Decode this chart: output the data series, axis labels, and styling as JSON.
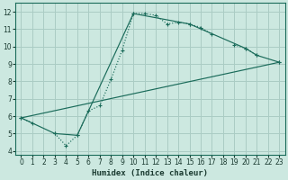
{
  "xlabel": "Humidex (Indice chaleur)",
  "bg_color": "#cce8e0",
  "grid_color": "#aaccc4",
  "line_color": "#1a6b5a",
  "xlim": [
    -0.5,
    23.5
  ],
  "ylim": [
    3.8,
    12.5
  ],
  "xticks": [
    0,
    1,
    2,
    3,
    4,
    5,
    6,
    7,
    8,
    9,
    10,
    11,
    12,
    13,
    14,
    15,
    16,
    17,
    18,
    19,
    20,
    21,
    22,
    23
  ],
  "yticks": [
    4,
    5,
    6,
    7,
    8,
    9,
    10,
    11,
    12
  ],
  "line1_segments": [
    {
      "x": [
        0,
        1
      ],
      "y": [
        5.9,
        5.6
      ]
    },
    {
      "x": [
        3,
        4,
        5,
        6,
        7,
        8,
        9,
        10,
        11,
        12,
        13,
        14,
        15,
        16,
        17
      ],
      "y": [
        5.0,
        4.3,
        4.9,
        6.3,
        6.6,
        8.1,
        9.8,
        11.9,
        11.9,
        11.8,
        11.3,
        11.4,
        11.3,
        11.1,
        10.7
      ]
    },
    {
      "x": [
        19,
        20,
        21
      ],
      "y": [
        10.1,
        9.9,
        9.5
      ]
    },
    {
      "x": [
        23
      ],
      "y": [
        9.1
      ]
    }
  ],
  "line2_x": [
    0,
    3,
    5,
    10,
    15,
    20,
    21,
    23
  ],
  "line2_y": [
    5.9,
    5.0,
    4.9,
    11.9,
    11.3,
    9.9,
    9.5,
    9.1
  ],
  "line3_x": [
    0,
    23
  ],
  "line3_y": [
    5.9,
    9.1
  ]
}
